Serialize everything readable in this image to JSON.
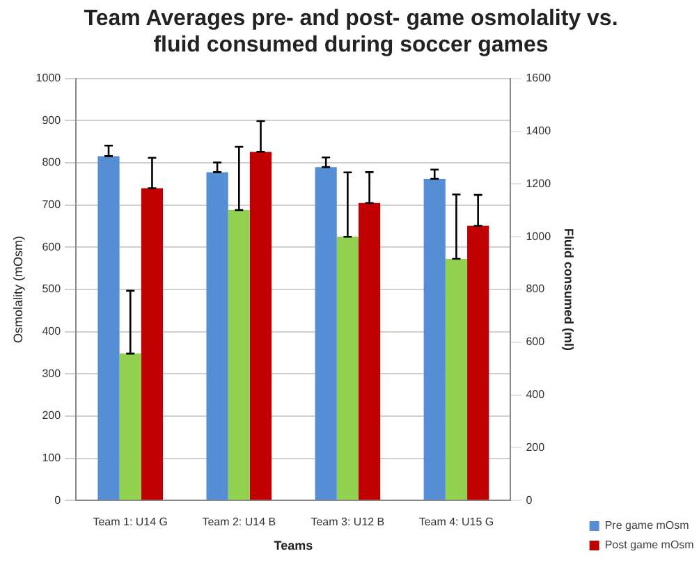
{
  "chart_data": {
    "type": "bar",
    "title": "Team Averages pre- and post- game osmolality vs. fluid consumed during soccer games",
    "xlabel": "Teams",
    "ylabel": "Osmolality (mOsm)",
    "y2label": "Fluid consumed (ml)",
    "categories": [
      "Team 1: U14 G",
      "Team 2: U14 B",
      "Team 3: U12 B",
      "Team 4: U15 G"
    ],
    "series": [
      {
        "name": "Pre game mOsm",
        "color": "#558ed5",
        "values": [
          816,
          778,
          790,
          762
        ],
        "errors": [
          [
            816,
            841
          ],
          [
            778,
            801
          ],
          [
            790,
            813
          ],
          [
            762,
            784
          ]
        ]
      },
      {
        "color": "#92d050",
        "axis": "y2",
        "values": [
          557,
          1101,
          1000,
          916
        ],
        "errors": [
          [
            557,
            795
          ],
          [
            1101,
            1341
          ],
          [
            1000,
            1244
          ],
          [
            916,
            1160
          ]
        ]
      },
      {
        "name": "Post game mOsm",
        "color": "#c00000",
        "values": [
          740,
          826,
          705,
          651
        ],
        "errors": [
          [
            740,
            812
          ],
          [
            826,
            899
          ],
          [
            705,
            778
          ],
          [
            651,
            724
          ]
        ]
      }
    ],
    "ylim": [
      0,
      1000
    ],
    "yticks": [
      0,
      100,
      200,
      300,
      400,
      500,
      600,
      700,
      800,
      900,
      1000
    ],
    "y2lim": [
      0,
      1600
    ],
    "y2ticks": [
      0,
      200,
      400,
      600,
      800,
      1000,
      1200,
      1400,
      1600
    ],
    "grid": "y",
    "legend": "bottom right"
  }
}
